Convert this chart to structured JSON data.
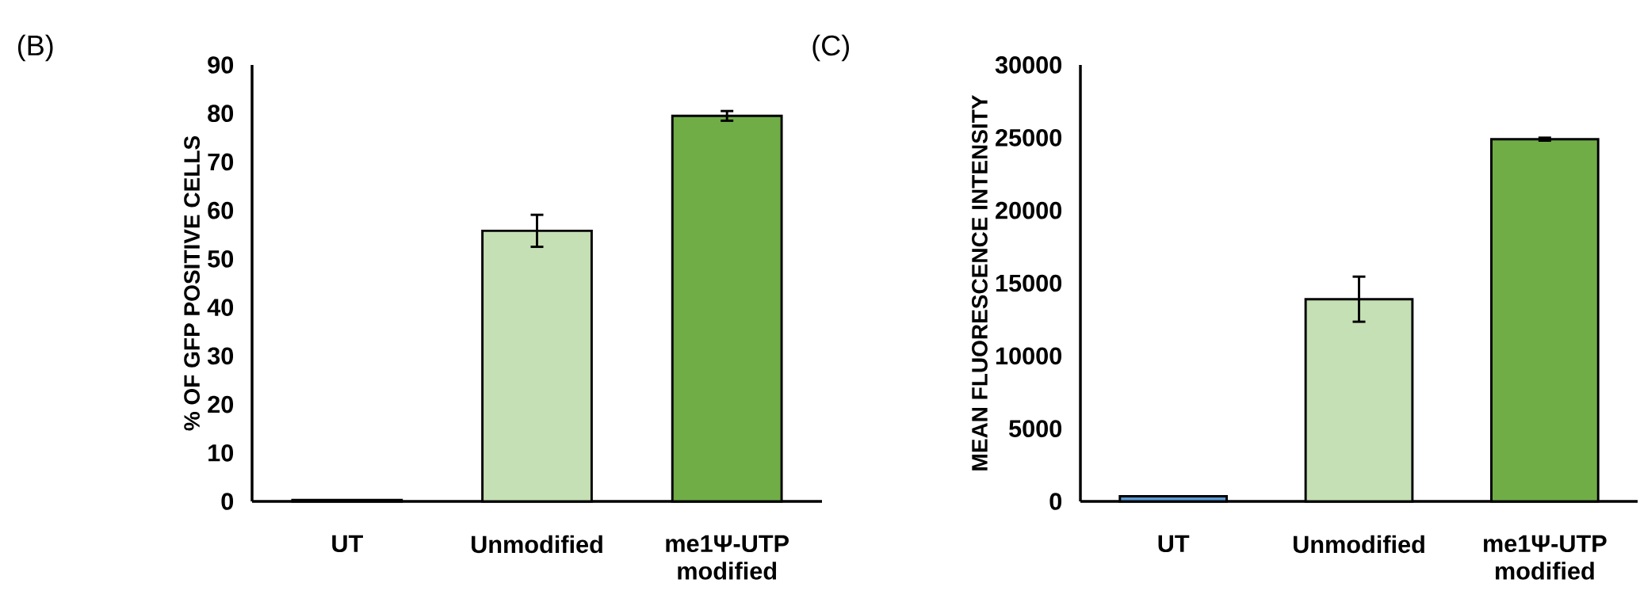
{
  "chart_data": [
    {
      "type": "bar",
      "title": "(B)",
      "ylabel": "% OF GFP POSITIVE CELLS",
      "categories": [
        "UT",
        "Unmodified",
        "me1Ψ-UTP modified"
      ],
      "values": [
        0.3,
        55.8,
        79.5
      ],
      "errors": [
        null,
        3.3,
        1.0
      ],
      "colors": [
        "#5b9bd5",
        "#c5e0b4",
        "#70ad47"
      ],
      "ylim": [
        0,
        90
      ],
      "yticks": [
        0,
        10,
        20,
        30,
        40,
        50,
        60,
        70,
        80,
        90
      ]
    },
    {
      "type": "bar",
      "title": "(C)",
      "ylabel": "MEAN FLUORESCENCE INTENSITY",
      "categories": [
        "UT",
        "Unmodified",
        "me1Ψ-UTP modified"
      ],
      "values": [
        350,
        13900,
        24900
      ],
      "errors": [
        null,
        1550,
        100
      ],
      "colors": [
        "#5b9bd5",
        "#c5e0b4",
        "#70ad47"
      ],
      "ylim": [
        0,
        30000
      ],
      "yticks": [
        0,
        5000,
        10000,
        15000,
        20000,
        25000,
        30000
      ]
    }
  ]
}
